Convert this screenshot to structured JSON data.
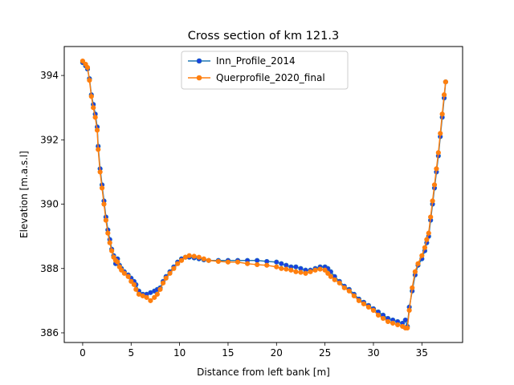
{
  "chart_data": {
    "type": "line",
    "title": "Cross section of km 121.3",
    "xlabel": "Distance from left bank [m]",
    "ylabel": "Elevation [m.a.s.l]",
    "xlim": [
      -1.9,
      39.2
    ],
    "ylim": [
      385.7,
      394.9
    ],
    "xticks": [
      0,
      5,
      10,
      15,
      20,
      25,
      30,
      35
    ],
    "yticks": [
      386,
      388,
      390,
      392,
      394
    ],
    "grid": false,
    "legend_position": "upper center",
    "series": [
      {
        "name": "Inn_Profile_2014",
        "color": "#1f77b4",
        "marker_color": "#1a3fe0",
        "points": [
          [
            0.0,
            394.4
          ],
          [
            0.3,
            394.3
          ],
          [
            0.5,
            394.2
          ],
          [
            0.7,
            393.9
          ],
          [
            0.9,
            393.4
          ],
          [
            1.1,
            393.1
          ],
          [
            1.3,
            392.8
          ],
          [
            1.5,
            392.4
          ],
          [
            1.6,
            391.8
          ],
          [
            1.8,
            391.1
          ],
          [
            2.0,
            390.6
          ],
          [
            2.2,
            390.1
          ],
          [
            2.4,
            389.6
          ],
          [
            2.6,
            389.2
          ],
          [
            2.8,
            388.9
          ],
          [
            3.0,
            388.6
          ],
          [
            3.2,
            388.4
          ],
          [
            3.4,
            388.15
          ],
          [
            3.6,
            388.3
          ],
          [
            3.8,
            388.1
          ],
          [
            4.0,
            388.0
          ],
          [
            4.3,
            387.9
          ],
          [
            4.7,
            387.8
          ],
          [
            5.0,
            387.7
          ],
          [
            5.3,
            387.6
          ],
          [
            5.5,
            387.5
          ],
          [
            5.8,
            387.3
          ],
          [
            6.2,
            387.2
          ],
          [
            6.6,
            387.2
          ],
          [
            7.0,
            387.25
          ],
          [
            7.4,
            387.3
          ],
          [
            7.7,
            387.35
          ],
          [
            8.0,
            387.4
          ],
          [
            8.3,
            387.6
          ],
          [
            8.6,
            387.75
          ],
          [
            9.0,
            387.9
          ],
          [
            9.4,
            388.05
          ],
          [
            9.8,
            388.2
          ],
          [
            10.2,
            388.3
          ],
          [
            10.6,
            388.35
          ],
          [
            11.0,
            388.35
          ],
          [
            11.5,
            388.33
          ],
          [
            12.0,
            388.3
          ],
          [
            12.5,
            388.27
          ],
          [
            13.0,
            388.25
          ],
          [
            14.0,
            388.25
          ],
          [
            15.0,
            388.25
          ],
          [
            16.0,
            388.25
          ],
          [
            17.0,
            388.25
          ],
          [
            18.0,
            388.25
          ],
          [
            19.0,
            388.22
          ],
          [
            20.0,
            388.2
          ],
          [
            20.5,
            388.15
          ],
          [
            21.0,
            388.1
          ],
          [
            21.5,
            388.05
          ],
          [
            22.0,
            388.05
          ],
          [
            22.5,
            388.0
          ],
          [
            23.0,
            387.95
          ],
          [
            23.5,
            387.95
          ],
          [
            24.0,
            388.0
          ],
          [
            24.5,
            388.05
          ],
          [
            25.0,
            388.05
          ],
          [
            25.3,
            388.0
          ],
          [
            25.6,
            387.9
          ],
          [
            26.0,
            387.75
          ],
          [
            26.5,
            387.6
          ],
          [
            27.0,
            387.45
          ],
          [
            27.5,
            387.35
          ],
          [
            28.0,
            387.2
          ],
          [
            28.5,
            387.05
          ],
          [
            29.0,
            386.95
          ],
          [
            29.5,
            386.85
          ],
          [
            30.0,
            386.75
          ],
          [
            30.5,
            386.65
          ],
          [
            31.0,
            386.55
          ],
          [
            31.5,
            386.45
          ],
          [
            32.0,
            386.4
          ],
          [
            32.5,
            386.35
          ],
          [
            33.0,
            386.3
          ],
          [
            33.3,
            386.4
          ],
          [
            33.5,
            386.2
          ],
          [
            33.7,
            386.8
          ],
          [
            34.0,
            387.3
          ],
          [
            34.3,
            387.8
          ],
          [
            34.6,
            388.1
          ],
          [
            35.0,
            388.3
          ],
          [
            35.3,
            388.55
          ],
          [
            35.5,
            388.8
          ],
          [
            35.7,
            389.0
          ],
          [
            35.9,
            389.5
          ],
          [
            36.1,
            390.0
          ],
          [
            36.3,
            390.5
          ],
          [
            36.5,
            391.0
          ],
          [
            36.7,
            391.5
          ],
          [
            36.9,
            392.1
          ],
          [
            37.1,
            392.7
          ],
          [
            37.3,
            393.3
          ],
          [
            37.45,
            393.8
          ]
        ]
      },
      {
        "name": "Querprofile_2020_final",
        "color": "#ff7f0e",
        "marker_color": "#ff7f0e",
        "points": [
          [
            0.0,
            394.45
          ],
          [
            0.3,
            394.35
          ],
          [
            0.5,
            394.25
          ],
          [
            0.7,
            393.85
          ],
          [
            0.9,
            393.35
          ],
          [
            1.1,
            393.0
          ],
          [
            1.3,
            392.7
          ],
          [
            1.5,
            392.3
          ],
          [
            1.6,
            391.7
          ],
          [
            1.8,
            391.0
          ],
          [
            2.0,
            390.5
          ],
          [
            2.2,
            390.0
          ],
          [
            2.4,
            389.5
          ],
          [
            2.6,
            389.1
          ],
          [
            2.8,
            388.8
          ],
          [
            3.0,
            388.55
          ],
          [
            3.2,
            388.35
          ],
          [
            3.4,
            388.25
          ],
          [
            3.6,
            388.2
          ],
          [
            3.8,
            388.05
          ],
          [
            4.0,
            387.95
          ],
          [
            4.3,
            387.85
          ],
          [
            4.7,
            387.75
          ],
          [
            5.0,
            387.6
          ],
          [
            5.3,
            387.5
          ],
          [
            5.5,
            387.35
          ],
          [
            5.8,
            387.2
          ],
          [
            6.2,
            387.15
          ],
          [
            6.6,
            387.1
          ],
          [
            7.0,
            387.0
          ],
          [
            7.4,
            387.1
          ],
          [
            7.7,
            387.2
          ],
          [
            8.0,
            387.35
          ],
          [
            8.3,
            387.55
          ],
          [
            8.6,
            387.7
          ],
          [
            9.0,
            387.85
          ],
          [
            9.4,
            388.0
          ],
          [
            9.8,
            388.15
          ],
          [
            10.2,
            388.25
          ],
          [
            10.6,
            388.35
          ],
          [
            11.0,
            388.4
          ],
          [
            11.5,
            388.38
          ],
          [
            12.0,
            388.35
          ],
          [
            12.5,
            388.3
          ],
          [
            13.0,
            388.25
          ],
          [
            14.0,
            388.22
          ],
          [
            15.0,
            388.2
          ],
          [
            16.0,
            388.2
          ],
          [
            17.0,
            388.15
          ],
          [
            18.0,
            388.12
          ],
          [
            19.0,
            388.1
          ],
          [
            20.0,
            388.05
          ],
          [
            20.5,
            388.0
          ],
          [
            21.0,
            387.98
          ],
          [
            21.5,
            387.95
          ],
          [
            22.0,
            387.9
          ],
          [
            22.5,
            387.88
          ],
          [
            23.0,
            387.85
          ],
          [
            23.5,
            387.9
          ],
          [
            24.0,
            387.95
          ],
          [
            24.5,
            387.98
          ],
          [
            25.0,
            387.95
          ],
          [
            25.3,
            387.85
          ],
          [
            25.6,
            387.75
          ],
          [
            26.0,
            387.65
          ],
          [
            26.5,
            387.55
          ],
          [
            27.0,
            387.4
          ],
          [
            27.5,
            387.3
          ],
          [
            28.0,
            387.15
          ],
          [
            28.5,
            387.0
          ],
          [
            29.0,
            386.9
          ],
          [
            29.5,
            386.8
          ],
          [
            30.0,
            386.7
          ],
          [
            30.5,
            386.55
          ],
          [
            31.0,
            386.45
          ],
          [
            31.5,
            386.35
          ],
          [
            32.0,
            386.3
          ],
          [
            32.5,
            386.25
          ],
          [
            33.0,
            386.2
          ],
          [
            33.3,
            386.15
          ],
          [
            33.5,
            386.15
          ],
          [
            33.7,
            386.7
          ],
          [
            34.0,
            387.4
          ],
          [
            34.3,
            387.9
          ],
          [
            34.6,
            388.15
          ],
          [
            35.0,
            388.4
          ],
          [
            35.3,
            388.65
          ],
          [
            35.5,
            388.9
          ],
          [
            35.7,
            389.1
          ],
          [
            35.9,
            389.6
          ],
          [
            36.1,
            390.1
          ],
          [
            36.3,
            390.6
          ],
          [
            36.5,
            391.1
          ],
          [
            36.7,
            391.6
          ],
          [
            36.9,
            392.2
          ],
          [
            37.1,
            392.8
          ],
          [
            37.3,
            393.4
          ],
          [
            37.45,
            393.8
          ]
        ]
      }
    ]
  }
}
